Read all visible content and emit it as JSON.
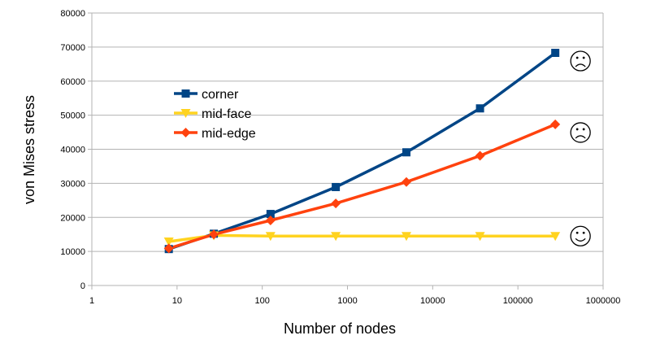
{
  "chart_data": {
    "type": "line",
    "title": "",
    "xlabel": "Number of nodes",
    "ylabel": "von Mises stress",
    "xscale": "log",
    "xlim": [
      1,
      1000000
    ],
    "ylim": [
      0,
      80000
    ],
    "xticks": [
      1,
      10,
      100,
      1000,
      10000,
      100000,
      1000000
    ],
    "xtick_labels": [
      "1",
      "10",
      "100",
      "1000",
      "10000",
      "100000",
      "1000000"
    ],
    "yticks": [
      0,
      10000,
      20000,
      30000,
      40000,
      50000,
      60000,
      70000,
      80000
    ],
    "ytick_labels": [
      "0",
      "10000",
      "20000",
      "30000",
      "40000",
      "50000",
      "60000",
      "70000",
      "80000"
    ],
    "grid": "horizontal",
    "legend_position": "top-left inside plot",
    "x": [
      8,
      27,
      125,
      729,
      4913,
      35937,
      274625
    ],
    "series": [
      {
        "name": "corner",
        "color": "#004586",
        "marker": "square",
        "values": [
          10700,
          15200,
          21000,
          28900,
          39100,
          52000,
          68300
        ]
      },
      {
        "name": "mid-face",
        "color": "#ffd320",
        "marker": "triangle-down",
        "values": [
          12900,
          14700,
          14500,
          14500,
          14500,
          14500,
          14500
        ]
      },
      {
        "name": "mid-edge",
        "color": "#ff420e",
        "marker": "diamond",
        "values": [
          10900,
          15000,
          19100,
          24100,
          30400,
          38100,
          47300
        ]
      }
    ],
    "annotations": [
      {
        "type": "sad-face-icon",
        "series": "corner"
      },
      {
        "type": "sad-face-icon",
        "series": "mid-edge"
      },
      {
        "type": "smiley-face-icon",
        "series": "mid-face"
      }
    ]
  }
}
